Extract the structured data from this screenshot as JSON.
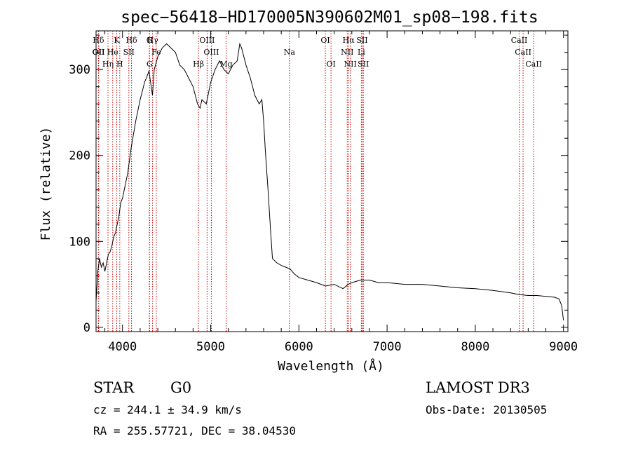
{
  "chart_data": {
    "type": "line",
    "title": "spec−56418−HD170005N390602M01_sp08−198.fits",
    "xlabel": "Wavelength (Å)",
    "ylabel": "Flux (relative)",
    "xlim": [
      3700,
      9050
    ],
    "ylim": [
      -5,
      345
    ],
    "xticks": [
      4000,
      5000,
      6000,
      7000,
      8000,
      9000
    ],
    "yticks": [
      0,
      100,
      200,
      300
    ],
    "grid": false,
    "line_color": "#000000",
    "marker_color": "#cc0000",
    "series": [
      {
        "x": [
          3700,
          3720,
          3740,
          3760,
          3780,
          3800,
          3820,
          3840,
          3860,
          3880,
          3900,
          3920,
          3940,
          3960,
          3980,
          4000,
          4030,
          4060,
          4100,
          4150,
          4200,
          4250,
          4300,
          4340,
          4360,
          4400,
          4450,
          4500,
          4550,
          4600,
          4650,
          4700,
          4750,
          4800,
          4850,
          4880,
          4900,
          4950,
          5000,
          5050,
          5100,
          5150,
          5200,
          5250,
          5300,
          5330,
          5350,
          5400,
          5450,
          5500,
          5550,
          5580,
          5600,
          5620,
          5650,
          5680,
          5700,
          5750,
          5800,
          5850,
          5900,
          5950,
          6000,
          6100,
          6200,
          6300,
          6400,
          6500,
          6560,
          6600,
          6700,
          6800,
          6900,
          7000,
          7200,
          7400,
          7600,
          7800,
          8000,
          8200,
          8400,
          8500,
          8600,
          8700,
          8800,
          8900,
          8950,
          8980,
          9000
        ],
        "y": [
          30,
          65,
          80,
          70,
          75,
          65,
          75,
          85,
          88,
          95,
          105,
          110,
          120,
          130,
          145,
          150,
          165,
          180,
          210,
          240,
          265,
          285,
          298,
          270,
          300,
          315,
          325,
          330,
          325,
          320,
          305,
          300,
          290,
          280,
          260,
          255,
          265,
          260,
          285,
          300,
          310,
          300,
          295,
          305,
          310,
          330,
          325,
          305,
          290,
          270,
          260,
          265,
          240,
          205,
          160,
          110,
          80,
          75,
          72,
          70,
          68,
          62,
          58,
          55,
          52,
          48,
          50,
          45,
          50,
          52,
          55,
          55,
          52,
          52,
          50,
          50,
          48,
          46,
          45,
          43,
          40,
          38,
          37,
          37,
          36,
          35,
          33,
          25,
          8
        ]
      }
    ],
    "lines": [
      {
        "label": "Hδ",
        "x": 3727
      },
      {
        "label": "K",
        "x": 3934
      },
      {
        "label": "Hδ",
        "x": 4102
      },
      {
        "label": "G",
        "x": 4305
      },
      {
        "label": "Hγ",
        "x": 4341
      },
      {
        "label": "OIII",
        "x": 4959
      },
      {
        "label": "OI",
        "x": 6300
      },
      {
        "label": "Hα",
        "x": 6563
      },
      {
        "label": "SII",
        "x": 6717
      },
      {
        "label": "CaII",
        "x": 8498
      },
      {
        "label": "OII",
        "x": 3727
      },
      {
        "label": "He",
        "x": 3889
      },
      {
        "label": "SII",
        "x": 4072
      },
      {
        "label": "Fe",
        "x": 4383
      },
      {
        "label": "OIII",
        "x": 5007
      },
      {
        "label": "Na",
        "x": 5893
      },
      {
        "label": "NII",
        "x": 6548
      },
      {
        "label": "Li",
        "x": 6708
      },
      {
        "label": "CaII",
        "x": 8542
      },
      {
        "label": "OII",
        "x": 3730
      },
      {
        "label": "Hη",
        "x": 3835
      },
      {
        "label": "H",
        "x": 3969
      },
      {
        "label": "G",
        "x": 4307
      },
      {
        "label": "Hβ",
        "x": 4861
      },
      {
        "label": "Mg",
        "x": 5175
      },
      {
        "label": "OI",
        "x": 6364
      },
      {
        "label": "NII",
        "x": 6583
      },
      {
        "label": "SII",
        "x": 6731
      },
      {
        "label": "CaII",
        "x": 8662
      }
    ]
  },
  "info": {
    "object_class": "STAR",
    "subclass": "G0",
    "survey": "LAMOST DR3",
    "redshift": "cz = 244.1 ± 34.9 km/s",
    "obs_date": "Obs-Date: 20130505",
    "coords": "RA = 255.57721, DEC =  38.04530"
  }
}
